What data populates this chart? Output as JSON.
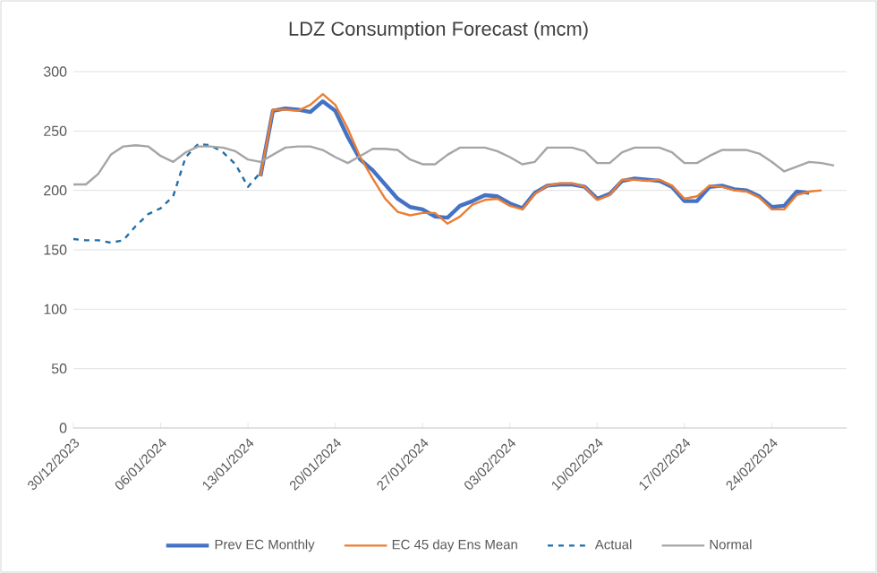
{
  "chart_data": {
    "type": "line",
    "title": "LDZ Consumption Forecast (mcm)",
    "x": [
      "2023-12-30",
      "2023-12-31",
      "2024-01-01",
      "2024-01-02",
      "2024-01-03",
      "2024-01-04",
      "2024-01-05",
      "2024-01-06",
      "2024-01-07",
      "2024-01-08",
      "2024-01-09",
      "2024-01-10",
      "2024-01-11",
      "2024-01-12",
      "2024-01-13",
      "2024-01-14",
      "2024-01-15",
      "2024-01-16",
      "2024-01-17",
      "2024-01-18",
      "2024-01-19",
      "2024-01-20",
      "2024-01-21",
      "2024-01-22",
      "2024-01-23",
      "2024-01-24",
      "2024-01-25",
      "2024-01-26",
      "2024-01-27",
      "2024-01-28",
      "2024-01-29",
      "2024-01-30",
      "2024-01-31",
      "2024-02-01",
      "2024-02-02",
      "2024-02-03",
      "2024-02-04",
      "2024-02-05",
      "2024-02-06",
      "2024-02-07",
      "2024-02-08",
      "2024-02-09",
      "2024-02-10",
      "2024-02-11",
      "2024-02-12",
      "2024-02-13",
      "2024-02-14",
      "2024-02-15",
      "2024-02-16",
      "2024-02-17",
      "2024-02-18",
      "2024-02-19",
      "2024-02-20",
      "2024-02-21",
      "2024-02-22",
      "2024-02-23",
      "2024-02-24",
      "2024-02-25",
      "2024-02-26",
      "2024-02-27",
      "2024-02-28",
      "2024-02-29"
    ],
    "series": [
      {
        "name": "Prev EC Monthly",
        "color": "#4472c4",
        "line_style": "solid",
        "values": [
          null,
          null,
          null,
          null,
          null,
          null,
          null,
          null,
          null,
          null,
          null,
          null,
          null,
          null,
          null,
          212,
          267,
          269,
          268,
          266,
          275,
          267,
          245,
          226,
          217,
          205,
          193,
          186,
          184,
          178,
          177,
          187,
          191,
          196,
          195,
          189,
          185,
          198,
          204,
          205,
          205,
          203,
          193,
          197,
          208,
          210,
          209,
          208,
          203,
          191,
          191,
          203,
          204,
          201,
          200,
          195,
          186,
          187,
          199,
          198,
          null,
          null
        ]
      },
      {
        "name": "EC 45 day Ens Mean",
        "color": "#ed7d31",
        "line_style": "solid",
        "values": [
          null,
          null,
          null,
          null,
          null,
          null,
          null,
          null,
          null,
          null,
          null,
          null,
          null,
          null,
          null,
          212,
          268,
          268,
          267,
          272,
          281,
          272,
          252,
          228,
          210,
          193,
          182,
          179,
          181,
          181,
          172,
          178,
          188,
          192,
          193,
          187,
          184,
          197,
          204,
          206,
          206,
          203,
          192,
          196,
          209,
          209,
          208,
          209,
          204,
          193,
          195,
          204,
          203,
          200,
          199,
          194,
          184,
          184,
          196,
          199,
          200,
          null
        ]
      },
      {
        "name": "Actual",
        "color": "#1f6fa8",
        "line_style": "dashed",
        "values": [
          159,
          158,
          158,
          156,
          158,
          170,
          180,
          185,
          195,
          228,
          239,
          238,
          232,
          222,
          203,
          215,
          null,
          null,
          null,
          null,
          null,
          null,
          null,
          null,
          null,
          null,
          null,
          null,
          null,
          null,
          null,
          null,
          null,
          null,
          null,
          null,
          null,
          null,
          null,
          null,
          null,
          null,
          null,
          null,
          null,
          null,
          null,
          null,
          null,
          null,
          null,
          null,
          null,
          null,
          null,
          null,
          null,
          null,
          null,
          null,
          null,
          null
        ]
      },
      {
        "name": "Normal",
        "color": "#a5a5a5",
        "line_style": "solid",
        "values": [
          205,
          205,
          214,
          230,
          237,
          238,
          237,
          229,
          224,
          232,
          237,
          237,
          236,
          233,
          226,
          224,
          230,
          236,
          237,
          237,
          234,
          228,
          223,
          229,
          235,
          235,
          234,
          226,
          222,
          222,
          230,
          236,
          236,
          236,
          233,
          228,
          222,
          224,
          236,
          236,
          236,
          233,
          223,
          223,
          232,
          236,
          236,
          236,
          232,
          223,
          223,
          229,
          234,
          234,
          234,
          231,
          224,
          216,
          220,
          224,
          223,
          221
        ]
      }
    ],
    "xlim": [
      "2023-12-30",
      "2024-03-01"
    ],
    "xticks": [
      {
        "value": "2023-12-30",
        "label": "30/12/2023"
      },
      {
        "value": "2024-01-06",
        "label": "06/01/2024"
      },
      {
        "value": "2024-01-13",
        "label": "13/01/2024"
      },
      {
        "value": "2024-01-20",
        "label": "20/01/2024"
      },
      {
        "value": "2024-01-27",
        "label": "27/01/2024"
      },
      {
        "value": "2024-02-03",
        "label": "03/02/2024"
      },
      {
        "value": "2024-02-10",
        "label": "10/02/2024"
      },
      {
        "value": "2024-02-17",
        "label": "17/02/2024"
      },
      {
        "value": "2024-02-24",
        "label": "24/02/2024"
      }
    ],
    "ylim": [
      0,
      300
    ],
    "yticks": [
      0,
      50,
      100,
      150,
      200,
      250,
      300
    ],
    "grid": "y",
    "legend": "bottom",
    "marker": "none"
  }
}
